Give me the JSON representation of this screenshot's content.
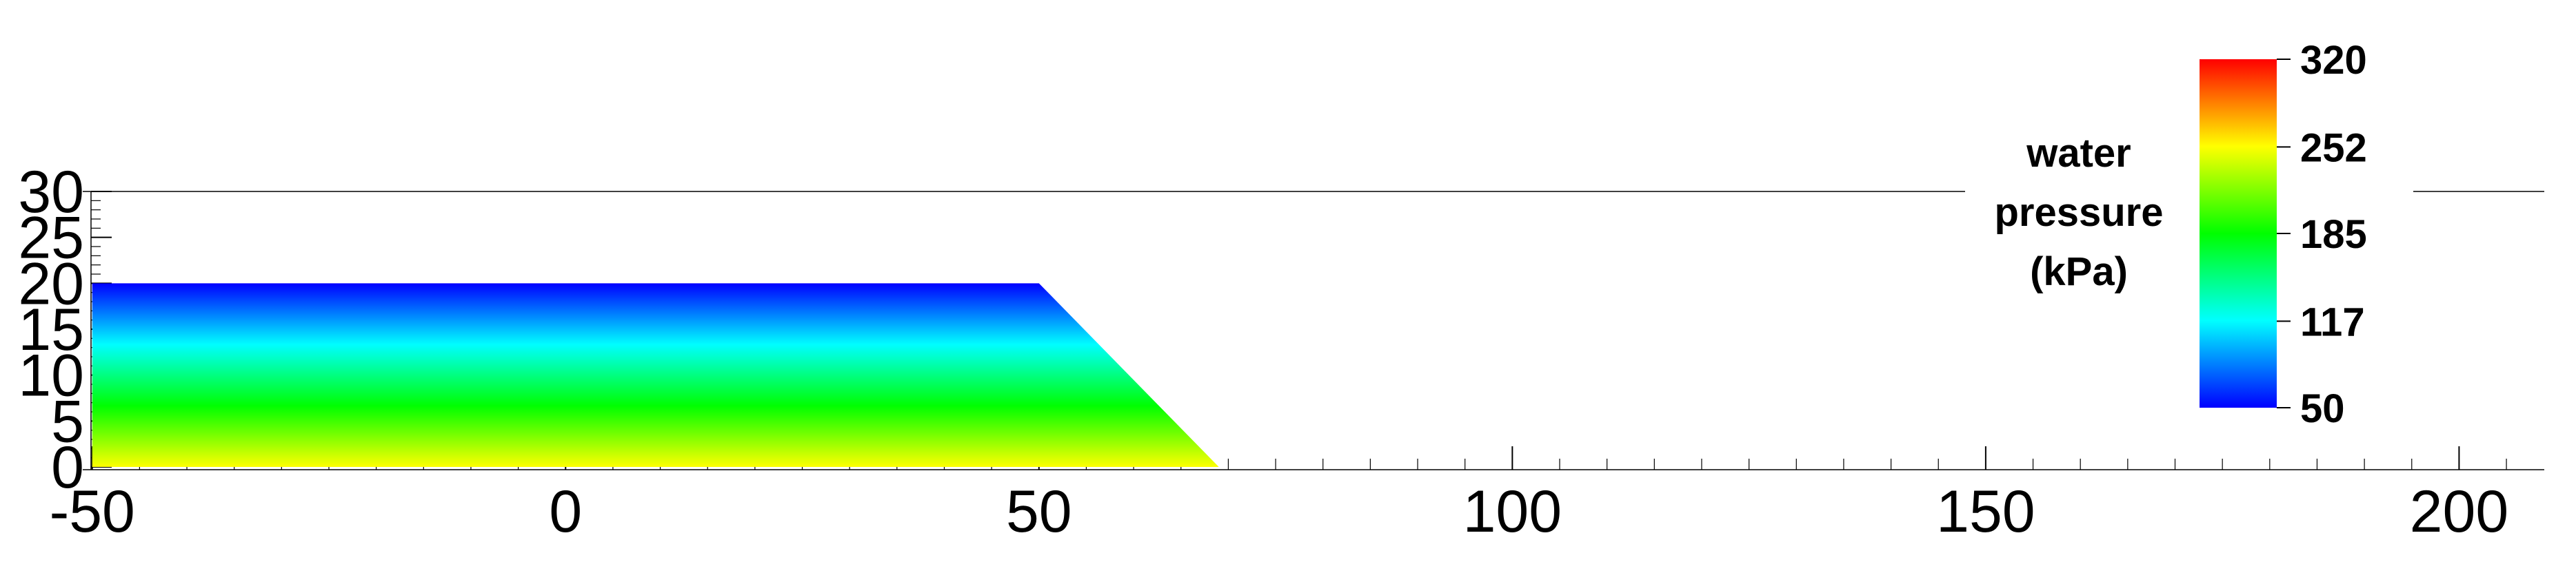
{
  "chart_data": {
    "type": "heatmap",
    "title": "",
    "xlabel": "",
    "ylabel": "",
    "xlim": [
      -51,
      209
    ],
    "ylim": [
      0,
      30
    ],
    "x_ticks": [
      -50,
      0,
      50,
      100,
      150,
      200
    ],
    "y_ticks": [
      0,
      5,
      10,
      15,
      20,
      25,
      30
    ],
    "x_minor_step": 5,
    "y_minor_step": 1,
    "domain_polygon": [
      [
        -50,
        0
      ],
      [
        69,
        0
      ],
      [
        50,
        20
      ],
      [
        -50,
        20
      ]
    ],
    "field": {
      "name": "water pressure",
      "variation": "vertical",
      "min_kPa": 50,
      "max_kPa": 252,
      "value_at_top_y20": 50,
      "value_at_bottom_y0": 252
    },
    "colorbar": {
      "title_lines": [
        "water",
        "pressure",
        "(kPa)"
      ],
      "min": 50,
      "max": 320,
      "tick_values": [
        320,
        252,
        185,
        117,
        50
      ],
      "tick_labels": [
        "320",
        "252",
        "185",
        "117",
        "50"
      ],
      "colormap": [
        "#0000ff",
        "#00ffff",
        "#00ff00",
        "#ffff00",
        "#ff0000"
      ]
    },
    "grid": false
  }
}
